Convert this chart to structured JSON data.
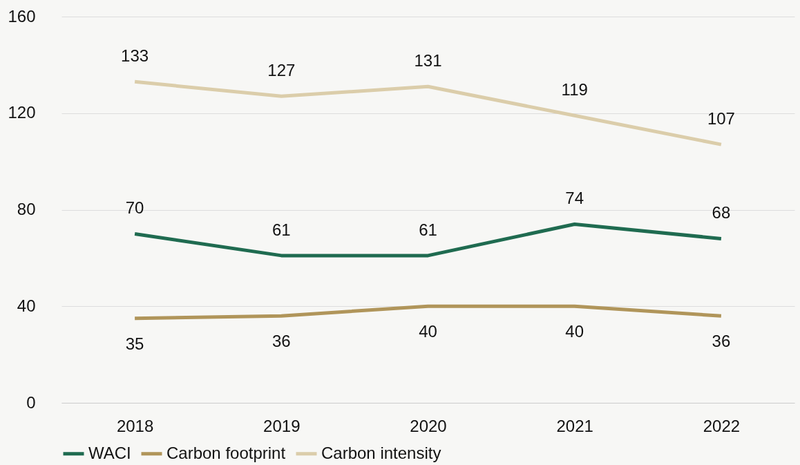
{
  "chart_data": {
    "type": "line",
    "categories": [
      "2018",
      "2019",
      "2020",
      "2021",
      "2022"
    ],
    "series": [
      {
        "name": "WACI",
        "color": "#1f6b50",
        "values": [
          70,
          61,
          61,
          74,
          68
        ]
      },
      {
        "name": "Carbon footprint",
        "color": "#b0955a",
        "values": [
          35,
          36,
          40,
          40,
          36
        ]
      },
      {
        "name": "Carbon intensity",
        "color": "#dbcdaa",
        "values": [
          133,
          127,
          131,
          119,
          107
        ]
      }
    ],
    "ylim": [
      0,
      160
    ],
    "yticks": [
      0,
      40,
      80,
      120,
      160
    ],
    "grid": "y",
    "legend": "bottom",
    "data_labels": true,
    "marker": "none",
    "line_style": "solid"
  }
}
